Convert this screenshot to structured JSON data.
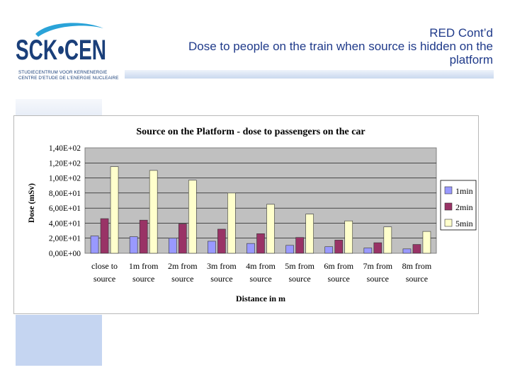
{
  "slide": {
    "title_line1": "RED Cont’d",
    "title_line2": "Dose to people on the train when source is hidden on the",
    "title_line3": "platform"
  },
  "logo": {
    "text": "SCK•CEN",
    "subtitle_line1": "STUDIECENTRUM VOOR KERNENERGIE",
    "subtitle_line2": "CENTRE D'ETUDE DE L'ENERGIE NUCLEAIRE"
  },
  "colors": {
    "title": "#1f3a8a",
    "plot_area": "#c0c0c0",
    "series_1min": "#9999ff",
    "series_2min": "#993366",
    "series_5min": "#ffffcc"
  },
  "chart_data": {
    "type": "bar",
    "title": "Source on the Platform - dose to passengers on the car",
    "xlabel": "Distance in m",
    "ylabel": "Dose (mSv)",
    "ylim": [
      0,
      140
    ],
    "yticks": [
      "0,00E+00",
      "2,00E+01",
      "4,00E+01",
      "6,00E+01",
      "8,00E+01",
      "1,00E+02",
      "1,20E+02",
      "1,40E+02"
    ],
    "categories": [
      [
        "close to",
        "source"
      ],
      [
        "1m from",
        "source"
      ],
      [
        "2m from",
        "source"
      ],
      [
        "3m from",
        "source"
      ],
      [
        "4m from",
        "source"
      ],
      [
        "5m from",
        "source"
      ],
      [
        "6m from",
        "source"
      ],
      [
        "7m from",
        "source"
      ],
      [
        "8m from",
        "source"
      ]
    ],
    "series": [
      {
        "name": "1min",
        "values": [
          23,
          22,
          20,
          16,
          13,
          10.5,
          8.7,
          7,
          5.8
        ]
      },
      {
        "name": "2min",
        "values": [
          46,
          44,
          39,
          32,
          26,
          21,
          17.5,
          14,
          11.7
        ]
      },
      {
        "name": "5min",
        "values": [
          115,
          110,
          97,
          80,
          65,
          52,
          43,
          35,
          29
        ]
      }
    ],
    "legend_position": "right",
    "grid": true
  }
}
